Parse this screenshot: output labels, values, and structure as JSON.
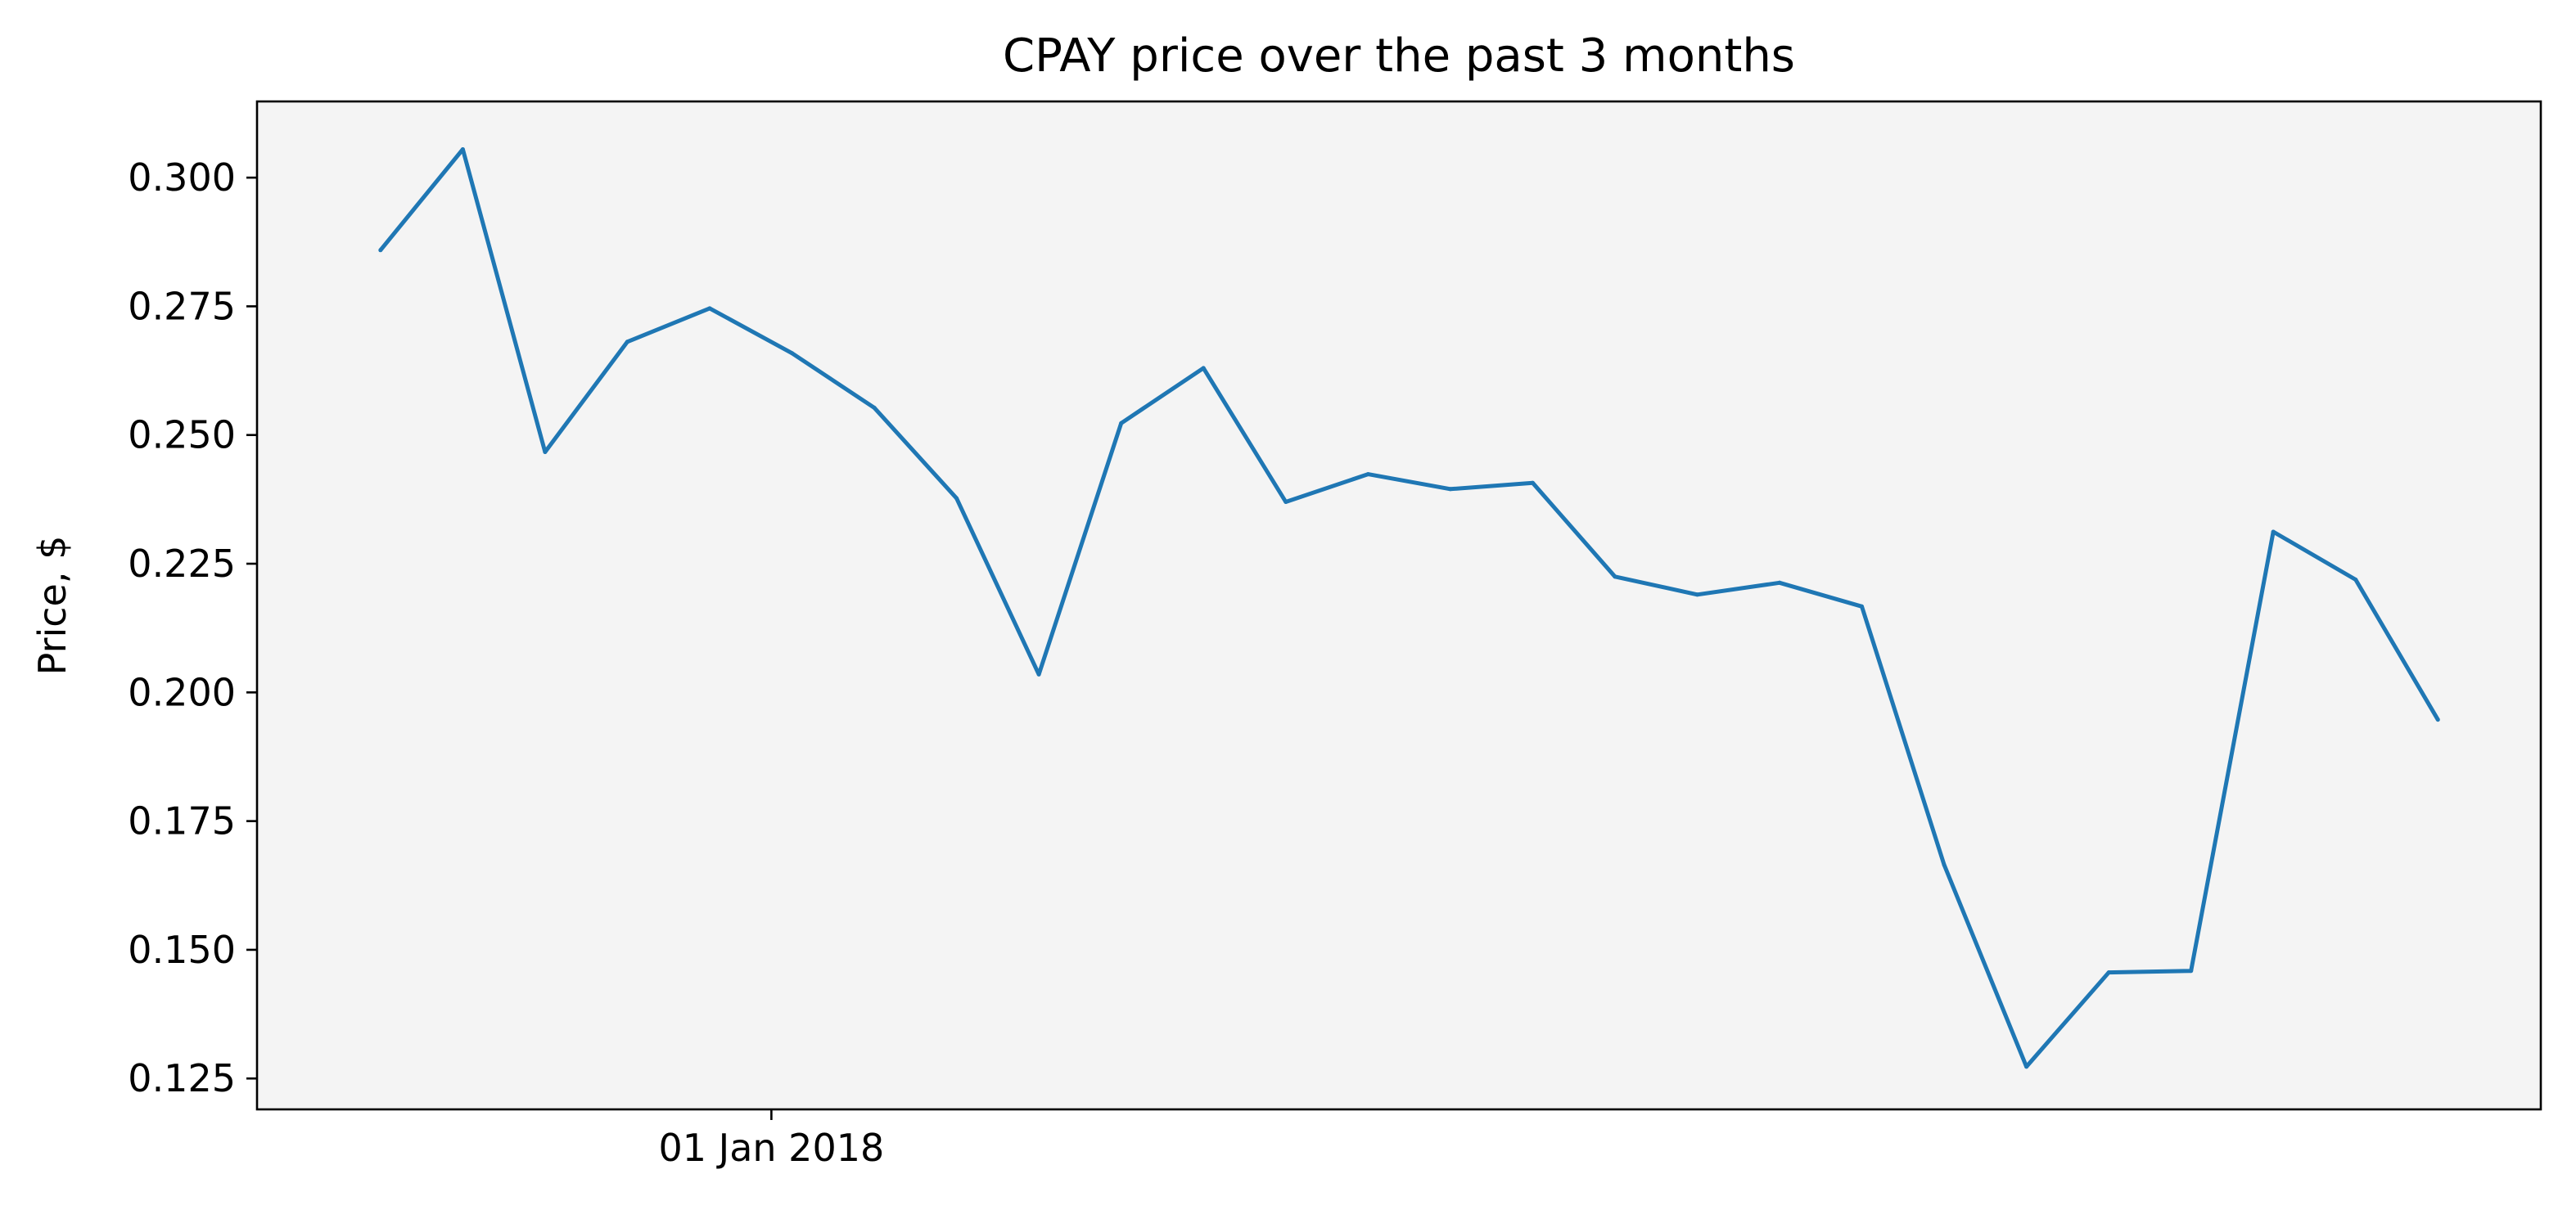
{
  "chart_data": {
    "type": "line",
    "title": "CPAY price over the past 3 months",
    "xlabel": "",
    "ylabel": "Price, $",
    "ylim": [
      0.119,
      0.3148
    ],
    "yticks": [
      0.125,
      0.15,
      0.175,
      0.2,
      0.225,
      0.25,
      0.275,
      0.3
    ],
    "ytick_labels": [
      "0.125",
      "0.150",
      "0.175",
      "0.200",
      "0.225",
      "0.250",
      "0.275",
      "0.300"
    ],
    "xticks": [
      {
        "x": "2018-01-01",
        "label": "01 Jan 2018"
      }
    ],
    "xlim": [
      "2017-12-07",
      "2018-03-28"
    ],
    "grid": false,
    "background_color": "#f4f4f4",
    "series": [
      {
        "color": "#1f77b4",
        "x": [
          "2017-12-13",
          "2017-12-17",
          "2017-12-21",
          "2017-12-25",
          "2017-12-29",
          "2018-01-02",
          "2018-01-06",
          "2018-01-10",
          "2018-01-14",
          "2018-01-18",
          "2018-01-22",
          "2018-01-26",
          "2018-01-30",
          "2018-02-03",
          "2018-02-07",
          "2018-02-11",
          "2018-02-15",
          "2018-02-19",
          "2018-02-23",
          "2018-02-27",
          "2018-03-03",
          "2018-03-07",
          "2018-03-11",
          "2018-03-15",
          "2018-03-19",
          "2018-03-23"
        ],
        "values": [
          0.2859,
          0.3055,
          0.2467,
          0.2681,
          0.2746,
          0.2659,
          0.2553,
          0.2377,
          0.2035,
          0.2523,
          0.263,
          0.237,
          0.2424,
          0.2395,
          0.2407,
          0.2225,
          0.219,
          0.2213,
          0.2167,
          0.1665,
          0.1273,
          0.1456,
          0.1459,
          0.2312,
          0.2219,
          0.1947
        ]
      }
    ]
  }
}
